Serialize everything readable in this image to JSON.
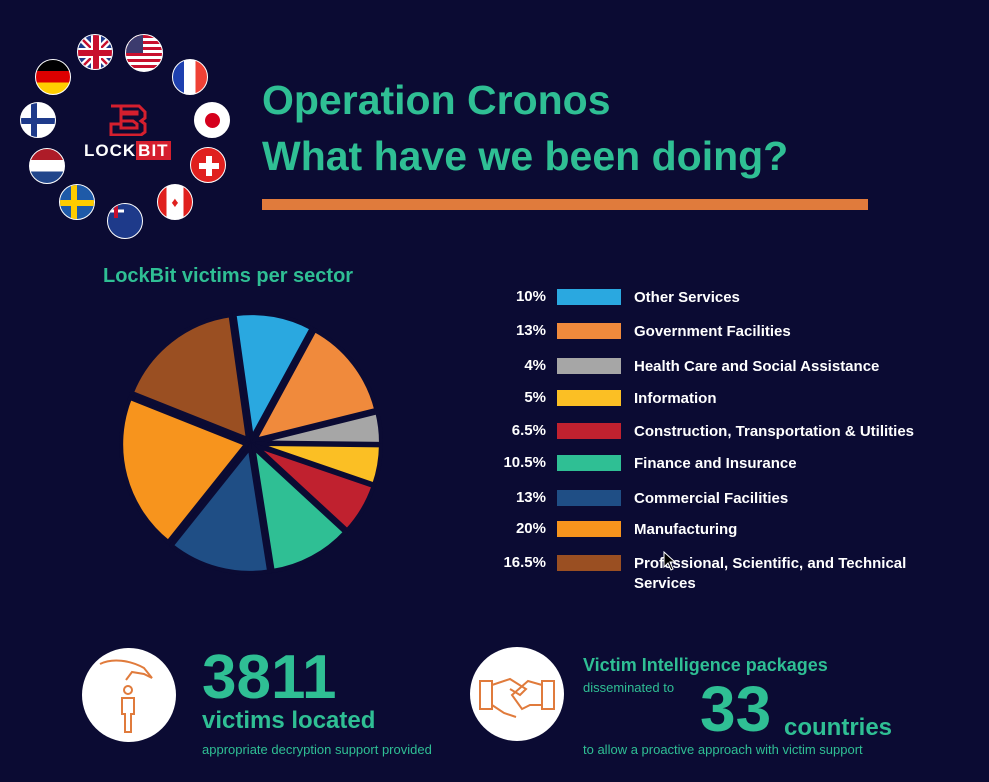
{
  "header": {
    "title_line1": "Operation Cronos",
    "title_line2": "What have we been doing?"
  },
  "logo": {
    "text_lock": "LOCK",
    "text_bit": "BIT"
  },
  "flags": [
    "uk",
    "usa",
    "france",
    "japan",
    "switzerland",
    "canada",
    "australia",
    "sweden",
    "netherlands",
    "finland",
    "germany"
  ],
  "colors": {
    "background": "#0b0b33",
    "accent": "#2fbf94",
    "rule": "#e07b3c"
  },
  "chart_data": {
    "type": "pie",
    "title": "LockBit victims per sector",
    "slices": [
      {
        "label": "Other Services",
        "value": 10,
        "pct_label": "10%",
        "color": "#2aa8e0"
      },
      {
        "label": "Government Facilities",
        "value": 13,
        "pct_label": "13%",
        "color": "#f08a3c"
      },
      {
        "label": "Health Care and Social Assistance",
        "value": 4,
        "pct_label": "4%",
        "color": "#a6a6a6"
      },
      {
        "label": "Information",
        "value": 5,
        "pct_label": "5%",
        "color": "#fbbf24"
      },
      {
        "label": "Construction, Transportation & Utilities",
        "value": 6.5,
        "pct_label": "6.5%",
        "color": "#c0212f"
      },
      {
        "label": "Finance and Insurance",
        "value": 10.5,
        "pct_label": "10.5%",
        "color": "#2fbf94"
      },
      {
        "label": "Commercial Facilities",
        "value": 13,
        "pct_label": "13%",
        "color": "#1f4e85"
      },
      {
        "label": "Manufacturing",
        "value": 20,
        "pct_label": "20%",
        "color": "#f7941d"
      },
      {
        "label": "Professional, Scientific, and  Technical Services",
        "value": 16.5,
        "pct_label": "16.5%",
        "color": "#9a4f22"
      }
    ],
    "legend_position": "right"
  },
  "stats": {
    "victims_number": "3811",
    "victims_label": "victims located",
    "victims_sub": "appropriate decryption support provided",
    "packages_heading": "Victim Intelligence packages",
    "packages_pre": "disseminated to",
    "countries_number": "33",
    "countries_label": "countries",
    "packages_sub": "to allow a proactive approach with victim support"
  }
}
